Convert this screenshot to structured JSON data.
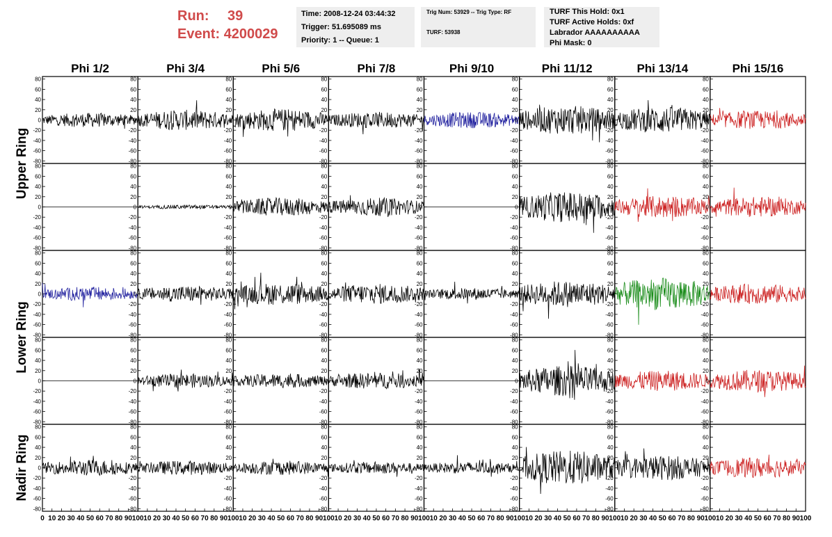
{
  "header": {
    "run_label": "Run:",
    "run_value": "39",
    "event_label": "Event:",
    "event_value": "4200029"
  },
  "info_time": {
    "time": "Time: 2008-12-24 03:44:32",
    "trigger": "Trigger: 51.695089 ms",
    "priority": "Priority: 1 -- Queue: 1"
  },
  "info_trig": {
    "trig": "Trig Num: 53929 -- Trig Type: RF",
    "turf": "TURF: 53938"
  },
  "info_turf": {
    "hold": "TURF This Hold: 0x1",
    "active": "TURF Active Holds: 0xf",
    "labrador": "Labrador AAAAAAAAAA",
    "phimask": "Phi Mask: 0"
  },
  "colors": {
    "black": "#000000",
    "blue": "#1f1f9e",
    "red": "#cc2020",
    "green": "#1a8c1a",
    "title_red": "#d04a4a"
  },
  "chart_data": {
    "type": "line",
    "columns": [
      "Phi 1/2",
      "Phi 3/4",
      "Phi 5/6",
      "Phi 7/8",
      "Phi 9/10",
      "Phi 11/12",
      "Phi 13/14",
      "Phi 15/16"
    ],
    "rows": [
      "Upper Ring",
      "Upper Ring",
      "Lower Ring",
      "Lower Ring",
      "Nadir Ring"
    ],
    "row_labels": [
      {
        "text": "Upper Ring",
        "span_rows": [
          0,
          1
        ]
      },
      {
        "text": "Lower Ring",
        "span_rows": [
          2,
          3
        ]
      },
      {
        "text": "Nadir Ring",
        "span_rows": [
          4,
          4
        ]
      }
    ],
    "ylim": [
      -85,
      85
    ],
    "xlim": [
      0,
      100
    ],
    "y_ticks": [
      "80",
      "60",
      "40",
      "20",
      "0",
      "-20",
      "-40",
      "-60",
      "-80"
    ],
    "x_ticks": [
      "0",
      "10",
      "20",
      "30",
      "40",
      "50",
      "60",
      "70",
      "80",
      "90",
      "100"
    ],
    "grid": false,
    "amplitudes": [
      [
        14,
        20,
        22,
        16,
        16,
        28,
        26,
        18
      ],
      [
        0,
        4,
        18,
        18,
        0,
        30,
        22,
        20
      ],
      [
        14,
        16,
        22,
        20,
        12,
        26,
        32,
        20
      ],
      [
        0,
        14,
        14,
        16,
        0,
        30,
        20,
        22
      ],
      [
        16,
        14,
        14,
        12,
        12,
        34,
        24,
        20
      ]
    ],
    "colors": [
      [
        "black",
        "black",
        "black",
        "black",
        "blue",
        "black",
        "black",
        "red"
      ],
      [
        "black",
        "black",
        "black",
        "black",
        "black",
        "black",
        "red",
        "red"
      ],
      [
        "blue",
        "black",
        "black",
        "black",
        "black",
        "black",
        "green",
        "red"
      ],
      [
        "black",
        "black",
        "black",
        "black",
        "black",
        "black",
        "red",
        "red"
      ],
      [
        "black",
        "black",
        "black",
        "black",
        "black",
        "black",
        "black",
        "red"
      ]
    ]
  }
}
